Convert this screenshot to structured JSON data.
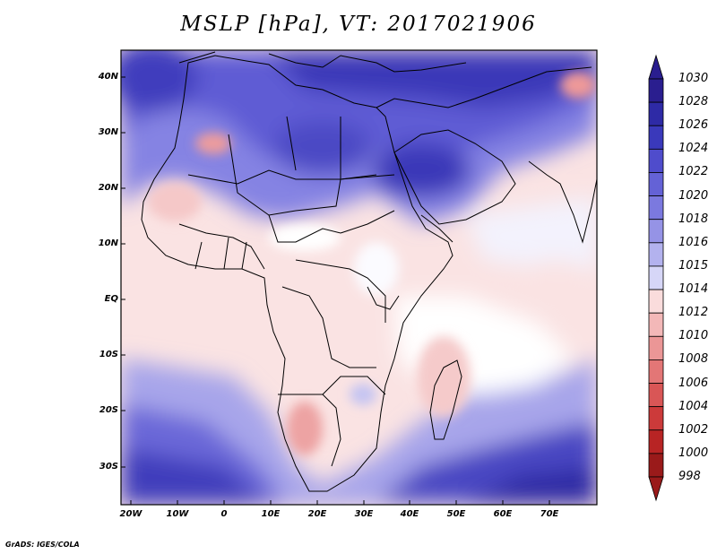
{
  "title": "MSLP [hPa], VT: 2017021906",
  "credit": "GrADS: IGES/COLA",
  "latitude_labels": [
    "40N",
    "30N",
    "20N",
    "10N",
    "EQ",
    "10S",
    "20S",
    "30S"
  ],
  "longitude_labels": [
    "20W",
    "10W",
    "0",
    "10E",
    "20E",
    "30E",
    "40E",
    "50E",
    "60E",
    "70E"
  ],
  "colorbar": {
    "labels": [
      "1030",
      "1028",
      "1026",
      "1024",
      "1022",
      "1020",
      "1018",
      "1016",
      "1015",
      "1014",
      "1012",
      "1010",
      "1008",
      "1006",
      "1004",
      "1002",
      "1000",
      "998"
    ],
    "colors": [
      "#2a1e8f",
      "#2e2aa6",
      "#3a39bb",
      "#4f4ccc",
      "#6462d6",
      "#7b79df",
      "#9593e6",
      "#b3b2ee",
      "#d6d6f7",
      "#ffffff",
      "#fadcdc",
      "#f3b8b8",
      "#eb9696",
      "#e37676",
      "#d95656",
      "#cc3a3a",
      "#b82424",
      "#9a1a1a"
    ]
  }
}
